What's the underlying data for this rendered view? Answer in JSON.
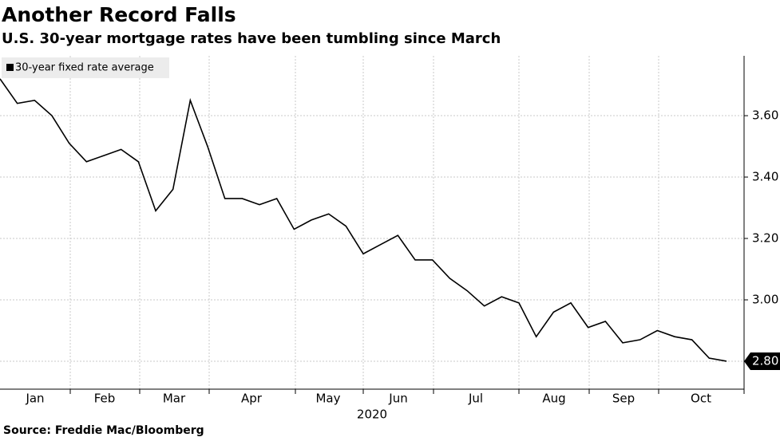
{
  "chart_data": {
    "type": "line",
    "title": "Another Record Falls",
    "subtitle": "U.S. 30-year mortgage rates have been tumbling since March",
    "source": "Source: Freddie Mac/Bloomberg",
    "x_tick_labels": [
      "Jan",
      "Feb",
      "Mar",
      "Apr",
      "May",
      "Jun",
      "Jul",
      "Aug",
      "Sep",
      "Oct"
    ],
    "x_year_label": "2020",
    "series": [
      {
        "name": "30-year fixed rate average",
        "color": "#000000",
        "values": [
          3.72,
          3.64,
          3.65,
          3.6,
          3.51,
          3.45,
          3.47,
          3.49,
          3.45,
          3.29,
          3.36,
          3.65,
          3.5,
          3.33,
          3.33,
          3.31,
          3.33,
          3.23,
          3.26,
          3.28,
          3.24,
          3.15,
          3.18,
          3.21,
          3.13,
          3.13,
          3.07,
          3.03,
          2.98,
          3.01,
          2.99,
          2.88,
          2.96,
          2.99,
          2.91,
          2.93,
          2.86,
          2.87,
          2.9,
          2.88,
          2.87,
          2.81,
          2.8
        ],
        "value_labels": [
          null,
          null,
          null,
          null,
          null,
          null,
          null,
          null,
          null,
          null,
          null,
          null,
          null,
          null,
          null,
          null,
          null,
          null,
          null,
          null,
          null,
          null,
          null,
          null,
          null,
          null,
          null,
          null,
          null,
          null,
          null,
          null,
          null,
          null,
          null,
          null,
          null,
          null,
          null,
          null,
          null,
          null,
          "2.80"
        ]
      }
    ],
    "ylim": [
      2.709,
      3.795
    ],
    "yticks": [
      {
        "value": 2.8,
        "label": "2.80"
      },
      {
        "value": 3.0,
        "label": "3.00"
      },
      {
        "value": 3.2,
        "label": "3.20"
      },
      {
        "value": 3.4,
        "label": "3.40"
      },
      {
        "value": 3.6,
        "label": "3.60"
      }
    ],
    "grid": true,
    "legend": "top-left"
  }
}
